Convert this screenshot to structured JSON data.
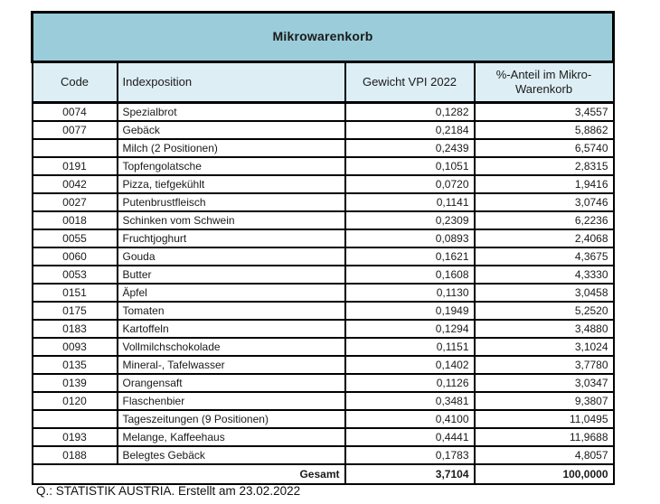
{
  "table": {
    "title": "Mikrowarenkorb",
    "columns": [
      "Code",
      "Indexposition",
      "Gewicht VPI 2022",
      "%-Anteil im Mikro-Warenkorb"
    ],
    "rows": [
      {
        "code": "0074",
        "position": "Spezialbrot",
        "weight": "0,1282",
        "share": "3,4557"
      },
      {
        "code": "0077",
        "position": "Gebäck",
        "weight": "0,2184",
        "share": "5,8862"
      },
      {
        "code": "",
        "position": "Milch (2 Positionen)",
        "weight": "0,2439",
        "share": "6,5740"
      },
      {
        "code": "0191",
        "position": "Topfengolatsche",
        "weight": "0,1051",
        "share": "2,8315"
      },
      {
        "code": "0042",
        "position": "Pizza, tiefgekühlt",
        "weight": "0,0720",
        "share": "1,9416"
      },
      {
        "code": "0027",
        "position": "Putenbrustfleisch",
        "weight": "0,1141",
        "share": "3,0746"
      },
      {
        "code": "0018",
        "position": "Schinken vom Schwein",
        "weight": "0,2309",
        "share": "6,2236"
      },
      {
        "code": "0055",
        "position": "Fruchtjoghurt",
        "weight": "0,0893",
        "share": "2,4068"
      },
      {
        "code": "0060",
        "position": "Gouda",
        "weight": "0,1621",
        "share": "4,3675"
      },
      {
        "code": "0053",
        "position": "Butter",
        "weight": "0,1608",
        "share": "4,3330"
      },
      {
        "code": "0151",
        "position": "Äpfel",
        "weight": "0,1130",
        "share": "3,0458"
      },
      {
        "code": "0175",
        "position": "Tomaten",
        "weight": "0,1949",
        "share": "5,2520"
      },
      {
        "code": "0183",
        "position": "Kartoffeln",
        "weight": "0,1294",
        "share": "3,4880"
      },
      {
        "code": "0093",
        "position": "Vollmilchschokolade",
        "weight": "0,1151",
        "share": "3,1024"
      },
      {
        "code": "0135",
        "position": "Mineral-, Tafelwasser",
        "weight": "0,1402",
        "share": "3,7780"
      },
      {
        "code": "0139",
        "position": "Orangensaft",
        "weight": "0,1126",
        "share": "3,0347"
      },
      {
        "code": "0120",
        "position": "Flaschenbier",
        "weight": "0,3481",
        "share": "9,3807"
      },
      {
        "code": "",
        "position": "Tageszeitungen (9 Positionen)",
        "weight": "0,4100",
        "share": "11,0495"
      },
      {
        "code": "0193",
        "position": "Melange, Kaffeehaus",
        "weight": "0,4441",
        "share": "11,9688"
      },
      {
        "code": "0188",
        "position": "Belegtes Gebäck",
        "weight": "0,1783",
        "share": "4,8057"
      }
    ],
    "total": {
      "label": "Gesamt",
      "weight": "3,7104",
      "share": "100,0000"
    }
  },
  "footer": {
    "source": "Q.: STATISTIK AUSTRIA. Erstellt am 23.02.2022"
  },
  "colors": {
    "title_bg": "#9acdd9",
    "header_bg": "#ddeef4",
    "border": "#000000",
    "row_bg": "#ffffff"
  }
}
